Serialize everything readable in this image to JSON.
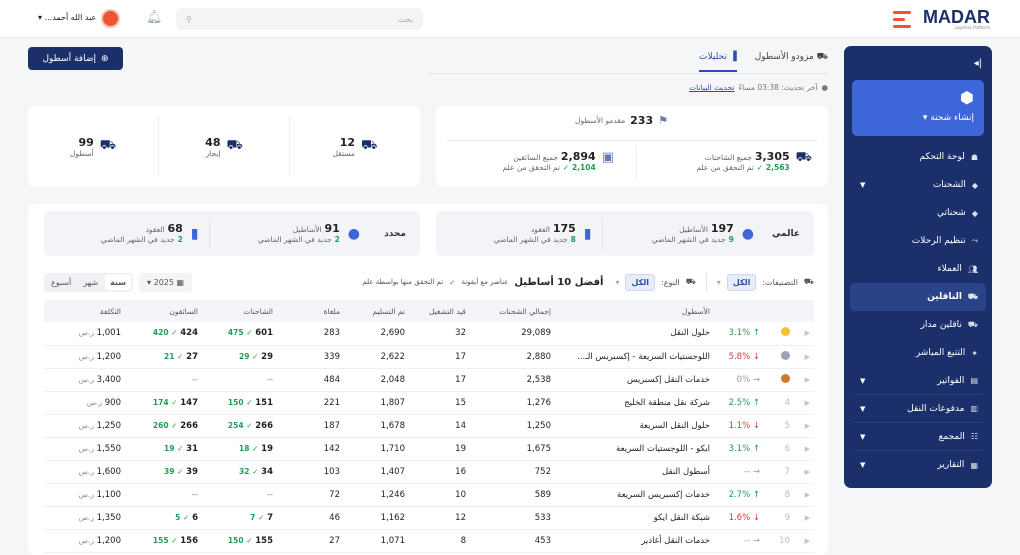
{
  "header": {
    "brand": "MADAR",
    "brand_sub": "Logistics Platform",
    "search_placeholder": "بحث",
    "user_name": "عبد الله أحمد..."
  },
  "sidebar": {
    "create_label": "إنشاء شحنة",
    "items": [
      {
        "label": "لوحة التحكم",
        "icon": "dashboard-icon"
      },
      {
        "label": "الشحنات",
        "icon": "box-icon",
        "caret": true
      },
      {
        "label": "شحناتي",
        "icon": "box-icon"
      },
      {
        "label": "تنظيم الرحلات",
        "icon": "route-icon"
      },
      {
        "label": "العملاء",
        "icon": "users-icon"
      },
      {
        "label": "الناقلين",
        "icon": "carriers-icon",
        "active": true
      },
      {
        "label": "ناقلين مدار",
        "icon": "truck-icon"
      },
      {
        "label": "التتبع المباشر",
        "icon": "tracking-icon"
      },
      {
        "label": "الفواتير",
        "icon": "invoice-icon",
        "caret": true,
        "sep": true
      },
      {
        "label": "مدفوعات النقل",
        "icon": "payments-icon",
        "caret": true,
        "sep": true
      },
      {
        "label": "المجمع",
        "icon": "hub-icon",
        "caret": true,
        "sep": true
      },
      {
        "label": "التقارير",
        "icon": "reports-icon",
        "caret": true
      }
    ]
  },
  "tabs": [
    {
      "label": "مزودو الأسطول"
    },
    {
      "label": "تحليلات",
      "active": true
    }
  ],
  "add_fleet": "إضافة أسطول",
  "last_update": {
    "text": "آخر تحديث: 03:38 مساءً",
    "link": "تحديث البيانات"
  },
  "providers": {
    "value": "233",
    "label": "مقدمو الأسطول"
  },
  "trucks": {
    "value": "3,305",
    "label": "جميع الشاحنات",
    "verified": "2,563",
    "verified_label": "تم التحقق من علم"
  },
  "drivers": {
    "value": "2,894",
    "label": "جميع السائقين",
    "verified": "2,104",
    "verified_label": "تم التحقق من علم"
  },
  "types": [
    {
      "value": "12",
      "label": "مستقل"
    },
    {
      "value": "48",
      "label": "إيجار"
    },
    {
      "value": "99",
      "label": "أسطول"
    }
  ],
  "scopes": [
    {
      "name": "عالمي",
      "fleets": "197",
      "fleets_label": "الأساطيل",
      "fleets_new": "9",
      "contracts": "175",
      "contracts_label": "العقود",
      "contracts_new": "8",
      "new_label": "جديد في الشهر الماضي"
    },
    {
      "name": "محدد",
      "fleets": "91",
      "fleets_label": "الأساطيل",
      "fleets_new": "2",
      "contracts": "68",
      "contracts_label": "العقود",
      "contracts_new": "2",
      "new_label": "جديد في الشهر الماضي"
    }
  ],
  "filters": {
    "category_label": "التصنيفات:",
    "category_value": "الكل",
    "type_label": "النوع:",
    "type_value": "الكل",
    "title": "أفضل 10 أساطيل",
    "note": "عناصر مع أيقونة",
    "note2": "تم التحقق منها بواسطة علم",
    "year": "2025",
    "periods": [
      "سنة",
      "شهر",
      "أسبوع"
    ],
    "active_period": "سنة"
  },
  "table": {
    "headers": [
      "الأسطول",
      "إجمالي الشحنات",
      "قيد التشغيل",
      "تم التسليم",
      "ملغاة",
      "الشاحنات",
      "السائقون",
      "التكلفة"
    ],
    "currency": "ر.س",
    "rows": [
      {
        "rank": "1",
        "trend": "3.1%",
        "dir": "up",
        "name": "حلول النقل",
        "total": "29,089",
        "inop": "32",
        "delivered": "2,690",
        "canceled": "283",
        "trucks": "601",
        "trucks_v": "475",
        "drivers": "424",
        "drivers_v": "420",
        "cost": "1,001"
      },
      {
        "rank": "2",
        "trend": "5.8%",
        "dir": "down",
        "name": "اللوجستيات السريعة - إكسبريس الـ...",
        "total": "2,880",
        "inop": "17",
        "delivered": "2,622",
        "canceled": "339",
        "trucks": "29",
        "trucks_v": "29",
        "drivers": "27",
        "drivers_v": "21",
        "cost": "1,200"
      },
      {
        "rank": "3",
        "trend": "0%",
        "dir": "flat",
        "name": "خدمات النقل إكسبريس",
        "total": "2,538",
        "inop": "17",
        "delivered": "2,048",
        "canceled": "484",
        "trucks": "--",
        "trucks_v": "",
        "drivers": "--",
        "drivers_v": "",
        "cost": "3,400"
      },
      {
        "rank": "4",
        "trend": "2.5%",
        "dir": "up",
        "name": "شركة نقل منطقة الخليج",
        "total": "1,276",
        "inop": "15",
        "delivered": "1,807",
        "canceled": "221",
        "trucks": "151",
        "trucks_v": "150",
        "drivers": "147",
        "drivers_v": "174",
        "cost": "900"
      },
      {
        "rank": "5",
        "trend": "1.1%",
        "dir": "down",
        "name": "حلول النقل السريعة",
        "total": "1,250",
        "inop": "14",
        "delivered": "1,678",
        "canceled": "187",
        "trucks": "266",
        "trucks_v": "254",
        "drivers": "266",
        "drivers_v": "260",
        "cost": "1,250"
      },
      {
        "rank": "6",
        "trend": "3.1%",
        "dir": "up",
        "name": "ايكو - اللوجستيات السريعة",
        "total": "1,675",
        "inop": "19",
        "delivered": "1,710",
        "canceled": "142",
        "trucks": "19",
        "trucks_v": "18",
        "drivers": "31",
        "drivers_v": "19",
        "cost": "1,550"
      },
      {
        "rank": "7",
        "trend": "--",
        "dir": "flat",
        "name": "أسطول النقل",
        "total": "752",
        "inop": "16",
        "delivered": "1,407",
        "canceled": "103",
        "trucks": "34",
        "trucks_v": "32",
        "drivers": "39",
        "drivers_v": "39",
        "cost": "1,600"
      },
      {
        "rank": "8",
        "trend": "2.7%",
        "dir": "up",
        "name": "خدمات إكسبريس السريعة",
        "total": "589",
        "inop": "10",
        "delivered": "1,246",
        "canceled": "72",
        "trucks": "--",
        "trucks_v": "",
        "drivers": "--",
        "drivers_v": "",
        "cost": "1,100"
      },
      {
        "rank": "9",
        "trend": "1.6%",
        "dir": "down",
        "name": "شبكة النقل ايكو",
        "total": "533",
        "inop": "12",
        "delivered": "1,162",
        "canceled": "46",
        "trucks": "7",
        "trucks_v": "7",
        "drivers": "6",
        "drivers_v": "5",
        "cost": "1,350"
      },
      {
        "rank": "10",
        "trend": "--",
        "dir": "flat",
        "name": "خدمات النقل أغادير",
        "total": "453",
        "inop": "8",
        "delivered": "1,071",
        "canceled": "27",
        "trucks": "155",
        "trucks_v": "150",
        "drivers": "156",
        "drivers_v": "155",
        "cost": "1,200"
      }
    ]
  },
  "colors": {
    "navy": "#1b2f6b",
    "accent": "#3d67d8",
    "brand_orange": "#e9562f",
    "up": "#1f9d55",
    "down": "#d63b3b"
  }
}
